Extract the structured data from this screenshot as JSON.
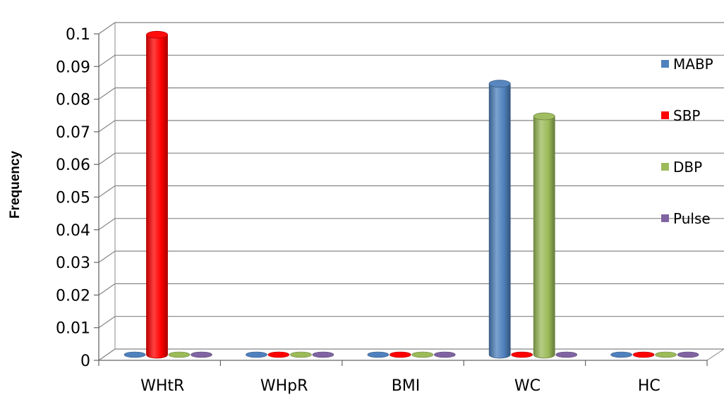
{
  "chart_data": {
    "type": "bar",
    "style": "3d-cylinder",
    "categories": [
      "WHtR",
      "WHpR",
      "BMI",
      "WC",
      "HC"
    ],
    "series": [
      {
        "name": "MABP",
        "color": "#4F81BD",
        "values": [
          0,
          0,
          0,
          0.083,
          0
        ]
      },
      {
        "name": "SBP",
        "color": "#FF0000",
        "values": [
          0.098,
          0,
          0,
          0,
          0
        ]
      },
      {
        "name": "DBP",
        "color": "#9BBB59",
        "values": [
          0,
          0,
          0,
          0.073,
          0
        ]
      },
      {
        "name": "Pulse",
        "color": "#8064A2",
        "values": [
          0,
          0,
          0,
          0,
          0
        ]
      }
    ],
    "xlabel": "",
    "ylabel": "Frequency",
    "ylim": [
      0,
      0.1
    ],
    "yticks": [
      "0",
      "0.01",
      "0.02",
      "0.03",
      "0.04",
      "0.05",
      "0.06",
      "0.07",
      "0.08",
      "0.09",
      "0.1"
    ],
    "grid": true,
    "legend": "right"
  }
}
